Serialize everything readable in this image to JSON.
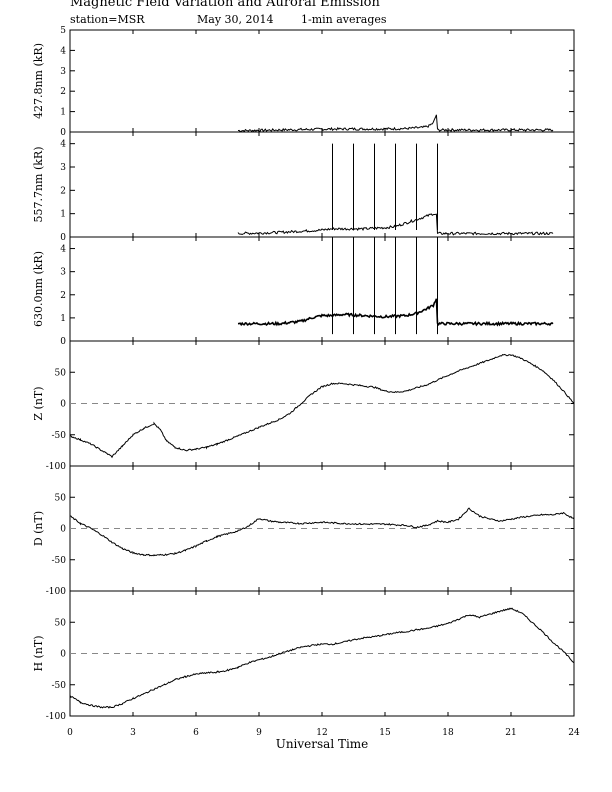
{
  "header": {
    "title": "Magnetic Field Variation and Auroral Emission",
    "station": "station=MSR",
    "date": "May 30, 2014",
    "averaging": "1-min averages"
  },
  "chart_data": {
    "type": "line",
    "xlabel": "Universal Time",
    "xlim": [
      0,
      24
    ],
    "xticks": [
      0,
      3,
      6,
      9,
      12,
      15,
      18,
      21,
      24
    ],
    "panels": [
      {
        "id": "p4278",
        "ylabel": "427.8nm (kR)",
        "ylim": [
          0,
          5
        ],
        "yticks": [
          0,
          1,
          2,
          3,
          4,
          5
        ],
        "zero_line": false,
        "spikes": [],
        "x": [
          8,
          9,
          10,
          11,
          12,
          13,
          14,
          15,
          16,
          16.8,
          17.1,
          17.3,
          17.45,
          17.5,
          18,
          19,
          20,
          21,
          22,
          23
        ],
        "y": [
          0.07,
          0.08,
          0.1,
          0.12,
          0.14,
          0.15,
          0.15,
          0.15,
          0.17,
          0.22,
          0.3,
          0.45,
          0.85,
          0.1,
          0.1,
          0.1,
          0.1,
          0.1,
          0.1,
          0.1
        ]
      },
      {
        "id": "p5577",
        "ylabel": "557.7nm (kR)",
        "ylim": [
          0,
          4.5
        ],
        "yticks": [
          0,
          1,
          2,
          3,
          4
        ],
        "zero_line": false,
        "spikes": [
          {
            "x": 12.5,
            "y": 4
          },
          {
            "x": 13.5,
            "y": 4
          },
          {
            "x": 14.5,
            "y": 4
          },
          {
            "x": 15.5,
            "y": 4
          },
          {
            "x": 16.5,
            "y": 4
          },
          {
            "x": 17.5,
            "y": 4
          }
        ],
        "x": [
          8,
          9,
          10,
          11,
          12,
          12.5,
          13,
          14,
          15,
          15.5,
          16,
          16.5,
          17,
          17.3,
          17.45,
          17.5,
          18,
          19,
          20,
          21,
          22,
          23
        ],
        "y": [
          0.15,
          0.17,
          0.2,
          0.25,
          0.3,
          0.35,
          0.35,
          0.35,
          0.4,
          0.45,
          0.6,
          0.75,
          0.9,
          1.0,
          0.95,
          0.15,
          0.15,
          0.15,
          0.15,
          0.15,
          0.15,
          0.15
        ]
      },
      {
        "id": "p6300",
        "ylabel": "630.0nm (kR)",
        "ylim": [
          0,
          4.5
        ],
        "yticks": [
          0,
          1,
          2,
          3,
          4
        ],
        "zero_line": false,
        "spikes": [
          {
            "x": 12.5,
            "y": 4.5
          },
          {
            "x": 13.5,
            "y": 4.5
          },
          {
            "x": 14.5,
            "y": 4.5
          },
          {
            "x": 15.5,
            "y": 4.5
          },
          {
            "x": 16.5,
            "y": 4.5
          },
          {
            "x": 17.5,
            "y": 4.5
          }
        ],
        "x": [
          8,
          9,
          10,
          11,
          11.5,
          12,
          12.5,
          13,
          14,
          15,
          16,
          16.5,
          17,
          17.3,
          17.45,
          17.5,
          18,
          19,
          20,
          21,
          22,
          23
        ],
        "y": [
          0.75,
          0.75,
          0.75,
          0.85,
          1.0,
          1.1,
          1.1,
          1.15,
          1.1,
          1.05,
          1.1,
          1.2,
          1.4,
          1.55,
          1.85,
          0.75,
          0.75,
          0.75,
          0.75,
          0.75,
          0.75,
          0.75
        ]
      },
      {
        "id": "pZ",
        "ylabel": "Z (nT)",
        "ylim": [
          -100,
          100
        ],
        "yticks": [
          -100,
          -50,
          0,
          50
        ],
        "zero_line": true,
        "spikes": [],
        "x": [
          0,
          0.5,
          1,
          1.5,
          2,
          2.5,
          3,
          3.5,
          4,
          4.3,
          4.6,
          5,
          5.5,
          6,
          6.5,
          7,
          8,
          9,
          10,
          10.5,
          11,
          11.5,
          12,
          12.5,
          13,
          13.5,
          14,
          14.5,
          15,
          15.5,
          16,
          17,
          18,
          18.5,
          19,
          19.5,
          20,
          20.5,
          21,
          21.5,
          22,
          22.5,
          23,
          23.5,
          24
        ],
        "y": [
          -52,
          -58,
          -65,
          -75,
          -85,
          -68,
          -50,
          -40,
          -32,
          -42,
          -60,
          -70,
          -75,
          -73,
          -70,
          -65,
          -52,
          -38,
          -25,
          -15,
          0,
          15,
          27,
          32,
          32,
          30,
          28,
          26,
          20,
          18,
          20,
          30,
          45,
          52,
          58,
          64,
          70,
          77,
          78,
          72,
          63,
          53,
          38,
          20,
          0
        ]
      },
      {
        "id": "pD",
        "ylabel": "D (nT)",
        "ylim": [
          -100,
          100
        ],
        "yticks": [
          -100,
          -50,
          0,
          50
        ],
        "zero_line": true,
        "spikes": [],
        "x": [
          0,
          0.5,
          1,
          1.5,
          2,
          2.5,
          3,
          3.5,
          4,
          4.5,
          5,
          5.5,
          6,
          6.5,
          7,
          8,
          8.5,
          9,
          9.5,
          10,
          11,
          12,
          13,
          14,
          15,
          16,
          16.5,
          17,
          17.5,
          18,
          18.5,
          19,
          19.5,
          20,
          20.5,
          21,
          21.5,
          22,
          22.5,
          23,
          23.5,
          24
        ],
        "y": [
          20,
          8,
          0,
          -10,
          -22,
          -32,
          -39,
          -42,
          -43,
          -42,
          -40,
          -35,
          -28,
          -20,
          -13,
          -4,
          4,
          16,
          12,
          10,
          8,
          10,
          8,
          7,
          7,
          5,
          2,
          5,
          12,
          10,
          15,
          32,
          20,
          15,
          12,
          15,
          18,
          20,
          22,
          22,
          25,
          15
        ]
      },
      {
        "id": "pH",
        "ylabel": "H (nT)",
        "ylim": [
          -100,
          100
        ],
        "yticks": [
          -100,
          -50,
          0,
          50
        ],
        "zero_line": true,
        "spikes": [],
        "x": [
          0,
          0.5,
          1,
          1.5,
          2,
          2.5,
          3,
          3.5,
          4,
          4.5,
          5,
          5.5,
          6,
          6.5,
          7,
          7.5,
          8,
          8.5,
          9,
          9.5,
          10,
          10.5,
          11,
          11.5,
          12,
          12.5,
          13,
          13.5,
          14,
          14.5,
          15,
          15.5,
          16,
          16.5,
          17,
          17.5,
          18,
          18.5,
          19,
          19.5,
          20,
          20.5,
          21,
          21.5,
          22,
          22.5,
          23,
          23.5,
          24
        ],
        "y": [
          -68,
          -78,
          -83,
          -86,
          -86,
          -80,
          -72,
          -65,
          -57,
          -50,
          -42,
          -37,
          -33,
          -31,
          -30,
          -27,
          -22,
          -15,
          -10,
          -6,
          0,
          5,
          10,
          13,
          15,
          15,
          18,
          22,
          25,
          27,
          30,
          33,
          35,
          38,
          40,
          44,
          48,
          55,
          62,
          58,
          63,
          68,
          72,
          65,
          50,
          35,
          18,
          3,
          -15
        ]
      }
    ]
  }
}
